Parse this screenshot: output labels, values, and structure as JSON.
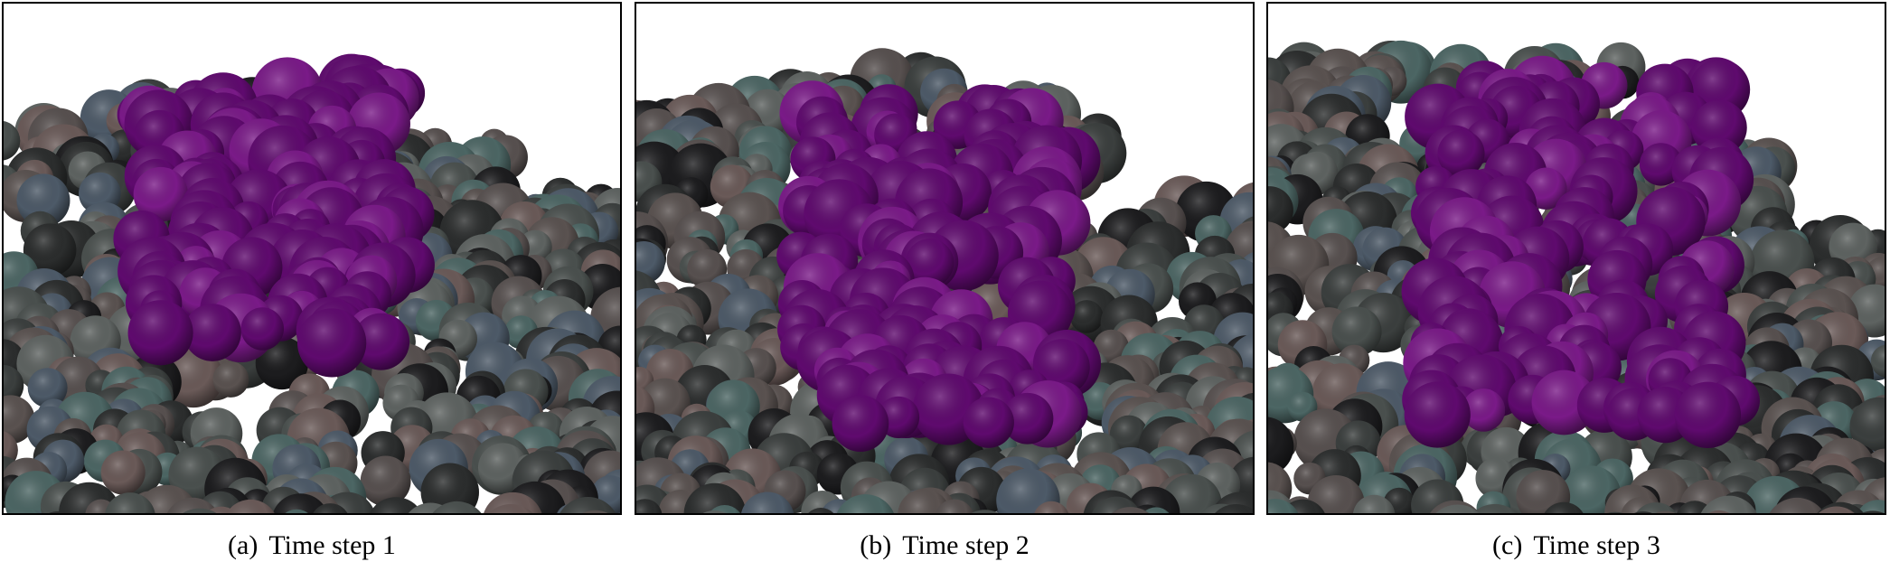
{
  "figure": {
    "panels": [
      {
        "label": "(a)",
        "caption": "Time step 1"
      },
      {
        "label": "(b)",
        "caption": "Time step 2"
      },
      {
        "label": "(c)",
        "caption": "Time step 3"
      }
    ],
    "colors": {
      "highlight": "#5f0a6e",
      "highlight_light": "#7a1a88",
      "atom_palette": [
        "#3b3f3e",
        "#4a504e",
        "#5a5250",
        "#4c6664",
        "#5e6361",
        "#2b2d2d",
        "#1c1c1e",
        "#6a5a58",
        "#57504f",
        "#4d5a68"
      ],
      "background": "#ffffff",
      "frame": "#000000"
    }
  }
}
